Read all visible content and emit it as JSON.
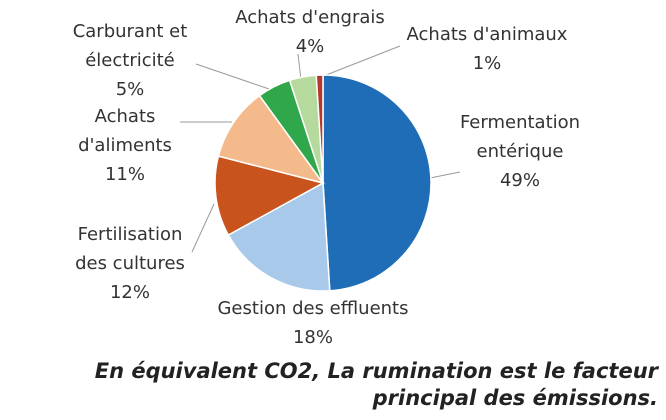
{
  "chart_data": {
    "type": "pie",
    "categories": [
      "Fermentation entérique",
      "Gestion des effluents",
      "Fertilisation des cultures",
      "Achats d'aliments",
      "Carburant et électricité",
      "Achats d'engrais",
      "Achats d'animaux"
    ],
    "values": [
      49,
      18,
      12,
      11,
      5,
      4,
      1
    ],
    "value_labels": [
      "49%",
      "18%",
      "12%",
      "11%",
      "5%",
      "4%",
      "1%"
    ],
    "colors": [
      "#1f6db6",
      "#a9c9ea",
      "#c9531c",
      "#f4ba8c",
      "#2fa74a",
      "#b6d99d",
      "#b23a2c"
    ],
    "caption": "En équivalent CO2, La rumination est le facteur principal des émissions."
  }
}
